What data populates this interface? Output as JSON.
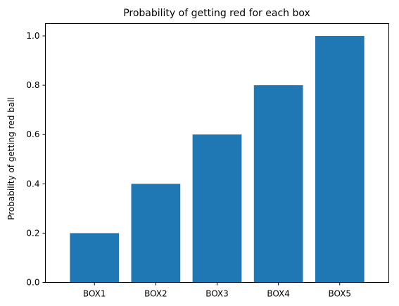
{
  "chart_data": {
    "type": "bar",
    "title": "Probability of getting red for each box",
    "xlabel": "",
    "ylabel": "Probability of getting red ball",
    "categories": [
      "BOX1",
      "BOX2",
      "BOX3",
      "BOX4",
      "BOX5"
    ],
    "values": [
      0.2,
      0.4,
      0.6,
      0.8,
      1.0
    ],
    "ylim": [
      0,
      1.05
    ],
    "yticks": [
      "0.0",
      "0.2",
      "0.4",
      "0.6",
      "0.8",
      "1.0"
    ],
    "bar_color": "#1f77b4",
    "grid": false,
    "legend": "none"
  }
}
